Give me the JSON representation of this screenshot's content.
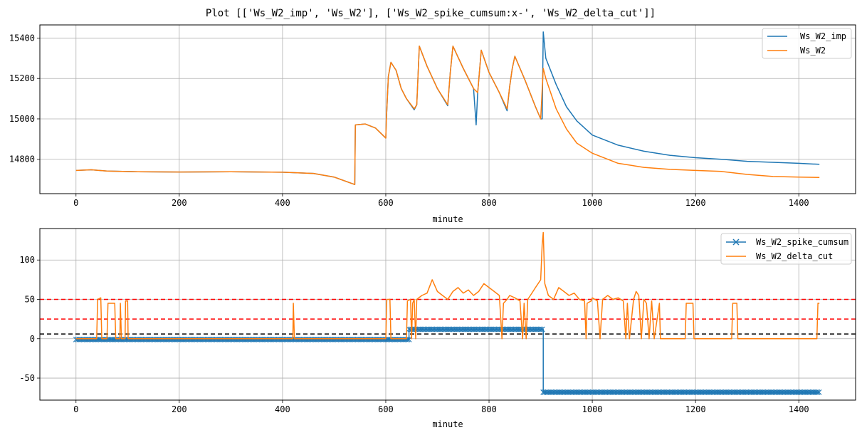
{
  "title": "Plot [['Ws_W2_imp', 'Ws_W2'], ['Ws_W2_spike_cumsum:x-', 'Ws_W2_delta_cut']]",
  "colors": {
    "blue": "#1f77b4",
    "orange": "#ff7f0e",
    "red": "#ff0000",
    "black": "#000000",
    "grid": "#b0b0b0"
  },
  "chart_data": [
    {
      "type": "line",
      "xlabel": "minute",
      "ylabel": "",
      "xlim": [
        -70,
        1510
      ],
      "ylim": [
        14630,
        15465
      ],
      "xticks": [
        0,
        200,
        400,
        600,
        800,
        1000,
        1200,
        1400
      ],
      "yticks": [
        14800,
        15000,
        15200,
        15400
      ],
      "grid": true,
      "legend": "top-right",
      "series": [
        {
          "name": "Ws_W2_imp",
          "color": "#1f77b4",
          "points": [
            [
              0,
              14745
            ],
            [
              30,
              14748
            ],
            [
              60,
              14742
            ],
            [
              120,
              14738
            ],
            [
              200,
              14737
            ],
            [
              300,
              14738
            ],
            [
              400,
              14736
            ],
            [
              460,
              14730
            ],
            [
              500,
              14712
            ],
            [
              540,
              14675
            ],
            [
              541,
              14970
            ],
            [
              560,
              14975
            ],
            [
              580,
              14955
            ],
            [
              600,
              14905
            ],
            [
              601,
              14990
            ],
            [
              605,
              15210
            ],
            [
              610,
              15280
            ],
            [
              620,
              15240
            ],
            [
              630,
              15150
            ],
            [
              640,
              15100
            ],
            [
              655,
              15045
            ],
            [
              660,
              15070
            ],
            [
              665,
              15360
            ],
            [
              680,
              15260
            ],
            [
              700,
              15150
            ],
            [
              720,
              15065
            ],
            [
              725,
              15230
            ],
            [
              730,
              15360
            ],
            [
              750,
              15250
            ],
            [
              770,
              15150
            ],
            [
              775,
              14970
            ],
            [
              778,
              15130
            ],
            [
              785,
              15340
            ],
            [
              800,
              15230
            ],
            [
              820,
              15130
            ],
            [
              835,
              15040
            ],
            [
              840,
              15160
            ],
            [
              845,
              15250
            ],
            [
              850,
              15310
            ],
            [
              870,
              15190
            ],
            [
              890,
              15060
            ],
            [
              900,
              15000
            ],
            [
              903,
              15000
            ],
            [
              905,
              15430
            ],
            [
              910,
              15300
            ],
            [
              930,
              15170
            ],
            [
              950,
              15060
            ],
            [
              970,
              14990
            ],
            [
              1000,
              14920
            ],
            [
              1050,
              14870
            ],
            [
              1100,
              14840
            ],
            [
              1150,
              14820
            ],
            [
              1200,
              14808
            ],
            [
              1250,
              14800
            ],
            [
              1300,
              14790
            ],
            [
              1350,
              14785
            ],
            [
              1400,
              14780
            ],
            [
              1440,
              14775
            ]
          ]
        },
        {
          "name": "Ws_W2",
          "color": "#ff7f0e",
          "points": [
            [
              0,
              14745
            ],
            [
              30,
              14748
            ],
            [
              60,
              14742
            ],
            [
              120,
              14738
            ],
            [
              200,
              14737
            ],
            [
              300,
              14738
            ],
            [
              400,
              14736
            ],
            [
              460,
              14730
            ],
            [
              500,
              14712
            ],
            [
              540,
              14675
            ],
            [
              541,
              14970
            ],
            [
              560,
              14975
            ],
            [
              580,
              14955
            ],
            [
              600,
              14905
            ],
            [
              601,
              14990
            ],
            [
              605,
              15210
            ],
            [
              610,
              15280
            ],
            [
              620,
              15240
            ],
            [
              630,
              15150
            ],
            [
              640,
              15100
            ],
            [
              655,
              15050
            ],
            [
              660,
              15070
            ],
            [
              665,
              15360
            ],
            [
              680,
              15260
            ],
            [
              700,
              15150
            ],
            [
              720,
              15070
            ],
            [
              725,
              15230
            ],
            [
              730,
              15360
            ],
            [
              750,
              15250
            ],
            [
              770,
              15150
            ],
            [
              778,
              15130
            ],
            [
              785,
              15340
            ],
            [
              800,
              15230
            ],
            [
              820,
              15130
            ],
            [
              835,
              15050
            ],
            [
              840,
              15160
            ],
            [
              845,
              15250
            ],
            [
              850,
              15310
            ],
            [
              870,
              15190
            ],
            [
              890,
              15060
            ],
            [
              900,
              15000
            ],
            [
              905,
              15250
            ],
            [
              910,
              15200
            ],
            [
              930,
              15050
            ],
            [
              950,
              14950
            ],
            [
              970,
              14880
            ],
            [
              1000,
              14830
            ],
            [
              1050,
              14780
            ],
            [
              1100,
              14760
            ],
            [
              1150,
              14750
            ],
            [
              1200,
              14745
            ],
            [
              1250,
              14740
            ],
            [
              1300,
              14725
            ],
            [
              1350,
              14715
            ],
            [
              1400,
              14712
            ],
            [
              1440,
              14710
            ]
          ]
        }
      ]
    },
    {
      "type": "line",
      "xlabel": "minute",
      "ylabel": "",
      "xlim": [
        -70,
        1510
      ],
      "ylim": [
        -78,
        140
      ],
      "xticks": [
        0,
        200,
        400,
        600,
        800,
        1000,
        1200,
        1400
      ],
      "yticks": [
        -50,
        0,
        50,
        100
      ],
      "grid": true,
      "legend": "top-right",
      "hlines": [
        {
          "y": 50,
          "color": "#ff0000",
          "style": "dashed"
        },
        {
          "y": 25,
          "color": "#ff0000",
          "style": "dashed"
        },
        {
          "y": 6,
          "color": "#000000",
          "style": "dashed"
        }
      ],
      "series": [
        {
          "name": "Ws_W2_spike_cumsum",
          "color": "#1f77b4",
          "marker": "x",
          "points": [
            [
              0,
              -1
            ],
            [
              645,
              -1
            ],
            [
              645,
              12
            ],
            [
              905,
              12
            ],
            [
              905,
              -68
            ],
            [
              1440,
              -68
            ]
          ]
        },
        {
          "name": "Ws_W2_delta_cut",
          "color": "#ff7f0e",
          "points": [
            [
              0,
              0
            ],
            [
              40,
              0
            ],
            [
              42,
              50
            ],
            [
              48,
              52
            ],
            [
              50,
              0
            ],
            [
              60,
              0
            ],
            [
              62,
              45
            ],
            [
              75,
              45
            ],
            [
              77,
              0
            ],
            [
              85,
              0
            ],
            [
              86,
              45
            ],
            [
              88,
              0
            ],
            [
              95,
              0
            ],
            [
              96,
              48
            ],
            [
              100,
              48
            ],
            [
              101,
              0
            ],
            [
              420,
              0
            ],
            [
              421,
              45
            ],
            [
              423,
              0
            ],
            [
              600,
              0
            ],
            [
              602,
              50
            ],
            [
              608,
              50
            ],
            [
              610,
              0
            ],
            [
              640,
              0
            ],
            [
              642,
              48
            ],
            [
              648,
              50
            ],
            [
              650,
              0
            ],
            [
              652,
              45
            ],
            [
              655,
              50
            ],
            [
              658,
              0
            ],
            [
              660,
              50
            ],
            [
              670,
              55
            ],
            [
              680,
              58
            ],
            [
              690,
              75
            ],
            [
              700,
              60
            ],
            [
              710,
              55
            ],
            [
              720,
              50
            ],
            [
              730,
              60
            ],
            [
              740,
              65
            ],
            [
              750,
              58
            ],
            [
              760,
              62
            ],
            [
              770,
              55
            ],
            [
              780,
              60
            ],
            [
              790,
              70
            ],
            [
              800,
              65
            ],
            [
              810,
              60
            ],
            [
              820,
              55
            ],
            [
              825,
              0
            ],
            [
              828,
              45
            ],
            [
              835,
              50
            ],
            [
              840,
              55
            ],
            [
              850,
              52
            ],
            [
              860,
              48
            ],
            [
              865,
              0
            ],
            [
              868,
              45
            ],
            [
              872,
              0
            ],
            [
              875,
              50
            ],
            [
              880,
              55
            ],
            [
              890,
              65
            ],
            [
              900,
              75
            ],
            [
              903,
              120
            ],
            [
              905,
              135
            ],
            [
              908,
              70
            ],
            [
              915,
              55
            ],
            [
              925,
              50
            ],
            [
              935,
              65
            ],
            [
              945,
              60
            ],
            [
              955,
              55
            ],
            [
              965,
              58
            ],
            [
              975,
              50
            ],
            [
              985,
              48
            ],
            [
              988,
              0
            ],
            [
              990,
              45
            ],
            [
              998,
              48
            ],
            [
              1000,
              52
            ],
            [
              1010,
              48
            ],
            [
              1015,
              0
            ],
            [
              1020,
              50
            ],
            [
              1030,
              55
            ],
            [
              1040,
              50
            ],
            [
              1050,
              52
            ],
            [
              1060,
              48
            ],
            [
              1065,
              0
            ],
            [
              1068,
              45
            ],
            [
              1072,
              0
            ],
            [
              1080,
              50
            ],
            [
              1085,
              60
            ],
            [
              1090,
              55
            ],
            [
              1095,
              0
            ],
            [
              1100,
              50
            ],
            [
              1105,
              45
            ],
            [
              1110,
              0
            ],
            [
              1115,
              48
            ],
            [
              1120,
              0
            ],
            [
              1130,
              45
            ],
            [
              1132,
              0
            ],
            [
              1180,
              0
            ],
            [
              1182,
              45
            ],
            [
              1195,
              45
            ],
            [
              1197,
              0
            ],
            [
              1270,
              0
            ],
            [
              1272,
              45
            ],
            [
              1280,
              45
            ],
            [
              1282,
              0
            ],
            [
              1420,
              0
            ],
            [
              1435,
              0
            ],
            [
              1437,
              45
            ],
            [
              1440,
              45
            ]
          ]
        }
      ]
    }
  ]
}
